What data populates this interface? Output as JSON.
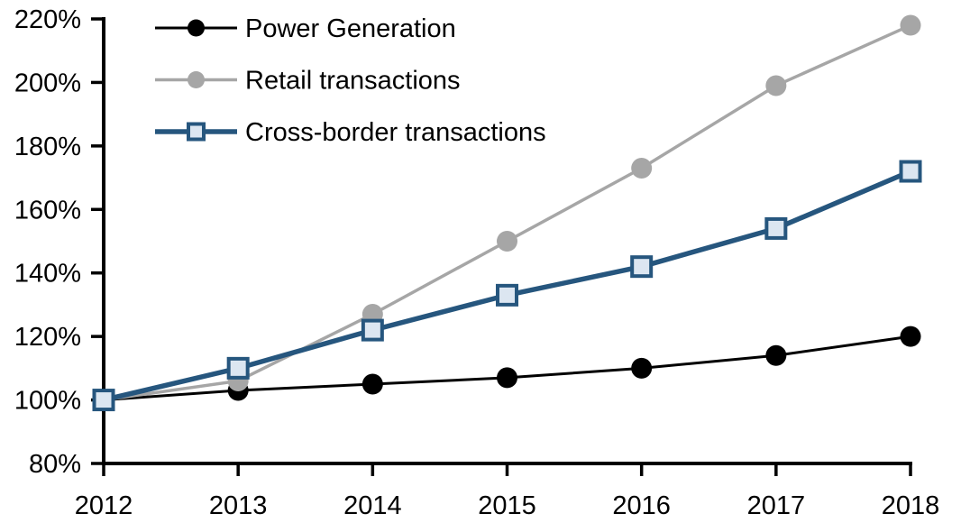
{
  "chart_data": {
    "type": "line",
    "title": "",
    "xlabel": "",
    "ylabel": "",
    "categories": [
      "2012",
      "2013",
      "2014",
      "2015",
      "2016",
      "2017",
      "2018"
    ],
    "series": [
      {
        "name": "Power Generation",
        "values": [
          100,
          103,
          105,
          107,
          110,
          114,
          120
        ],
        "color": "#000000",
        "marker": "circle",
        "marker_fill": "#000000",
        "line_width": 3
      },
      {
        "name": "Retail transactions",
        "values": [
          100,
          106,
          127,
          150,
          173,
          199,
          218
        ],
        "color": "#A6A6A6",
        "marker": "circle",
        "marker_fill": "#A6A6A6",
        "line_width": 3.5
      },
      {
        "name": "Cross-border transactions",
        "values": [
          100,
          110,
          122,
          133,
          142,
          154,
          172
        ],
        "color": "#26567E",
        "marker": "square",
        "marker_fill": "#DCE6F1",
        "line_width": 5.5
      }
    ],
    "y_axis": {
      "min": 80,
      "max": 220,
      "step": 20,
      "tick_suffix": "%",
      "tick_labels": [
        "80%",
        "100%",
        "120%",
        "140%",
        "160%",
        "180%",
        "200%",
        "220%"
      ]
    },
    "x_axis": {
      "tick_labels": [
        "2012",
        "2013",
        "2014",
        "2015",
        "2016",
        "2017",
        "2018"
      ]
    },
    "legend_position": "top-left",
    "grid": false,
    "axis_color": "#000000",
    "background_color": "#FFFFFF"
  }
}
